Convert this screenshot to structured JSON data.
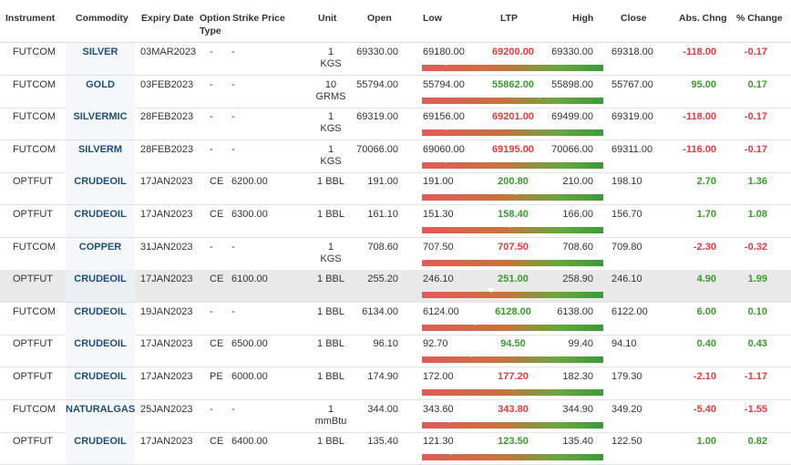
{
  "headers": {
    "instrument": "Instrument",
    "commodity": "Commodity",
    "expiry": "Expiry Date",
    "option_type_1": "Option",
    "option_type_2": "Type",
    "strike": "Strike Price",
    "unit": "Unit",
    "open": "Open",
    "low": "Low",
    "ltp": "LTP",
    "high": "High",
    "close": "Close",
    "abs_chng": "Abs. Chng",
    "pct_change": "% Change"
  },
  "colors": {
    "positive": "#3a9a2e",
    "negative": "#e03b3b",
    "commodity": "#1f4e79",
    "highlight_row": "#e9e9e9"
  },
  "rows": [
    {
      "instrument": "FUTCOM",
      "commodity": "SILVER",
      "expiry": "03MAR2023",
      "option_type": "-",
      "strike": "-",
      "unit1": "1",
      "unit2": "KGS",
      "open": "69330.00",
      "low": "69180.00",
      "ltp": "69200.00",
      "high": "69330.00",
      "close": "69318.00",
      "abs_chng": "-118.00",
      "pct_change": "-0.17",
      "dir": "neg",
      "ltp_frac": 0.13
    },
    {
      "instrument": "FUTCOM",
      "commodity": "GOLD",
      "expiry": "03FEB2023",
      "option_type": "-",
      "strike": "-",
      "unit1": "10",
      "unit2": "GRMS",
      "open": "55794.00",
      "low": "55794.00",
      "ltp": "55862.00",
      "high": "55898.00",
      "close": "55767.00",
      "abs_chng": "95.00",
      "pct_change": "0.17",
      "dir": "pos",
      "ltp_frac": 0.65
    },
    {
      "instrument": "FUTCOM",
      "commodity": "SILVERMIC",
      "expiry": "28FEB2023",
      "option_type": "-",
      "strike": "-",
      "unit1": "1",
      "unit2": "KGS",
      "open": "69319.00",
      "low": "69156.00",
      "ltp": "69201.00",
      "high": "69499.00",
      "close": "69319.00",
      "abs_chng": "-118.00",
      "pct_change": "-0.17",
      "dir": "neg",
      "ltp_frac": 0.13
    },
    {
      "instrument": "FUTCOM",
      "commodity": "SILVERM",
      "expiry": "28FEB2023",
      "option_type": "-",
      "strike": "-",
      "unit1": "1",
      "unit2": "KGS",
      "open": "70066.00",
      "low": "69060.00",
      "ltp": "69195.00",
      "high": "70066.00",
      "close": "69311.00",
      "abs_chng": "-116.00",
      "pct_change": "-0.17",
      "dir": "neg",
      "ltp_frac": 0.13
    },
    {
      "instrument": "OPTFUT",
      "commodity": "CRUDEOIL",
      "expiry": "17JAN2023",
      "option_type": "CE",
      "strike": "6200.00",
      "unit1": "1 BBL",
      "unit2": "",
      "open": "191.00",
      "low": "191.00",
      "ltp": "200.80",
      "high": "210.00",
      "close": "198.10",
      "abs_chng": "2.70",
      "pct_change": "1.36",
      "dir": "pos",
      "ltp_frac": 0.52
    },
    {
      "instrument": "OPTFUT",
      "commodity": "CRUDEOIL",
      "expiry": "17JAN2023",
      "option_type": "CE",
      "strike": "6300.00",
      "unit1": "1 BBL",
      "unit2": "",
      "open": "161.10",
      "low": "151.30",
      "ltp": "158.40",
      "high": "166.00",
      "close": "156.70",
      "abs_chng": "1.70",
      "pct_change": "1.08",
      "dir": "pos",
      "ltp_frac": 0.48
    },
    {
      "instrument": "FUTCOM",
      "commodity": "COPPER",
      "expiry": "31JAN2023",
      "option_type": "-",
      "strike": "-",
      "unit1": "1",
      "unit2": "KGS",
      "open": "708.60",
      "low": "707.50",
      "ltp": "707.50",
      "high": "708.60",
      "close": "709.80",
      "abs_chng": "-2.30",
      "pct_change": "-0.32",
      "dir": "neg",
      "ltp_frac": 0.01
    },
    {
      "instrument": "OPTFUT",
      "commodity": "CRUDEOIL",
      "expiry": "17JAN2023",
      "option_type": "CE",
      "strike": "6100.00",
      "unit1": "1 BBL",
      "unit2": "",
      "open": "255.20",
      "low": "246.10",
      "ltp": "251.00",
      "high": "258.90",
      "close": "246.10",
      "abs_chng": "4.90",
      "pct_change": "1.99",
      "dir": "pos",
      "ltp_frac": 0.38,
      "highlight": true
    },
    {
      "instrument": "FUTCOM",
      "commodity": "CRUDEOIL",
      "expiry": "19JAN2023",
      "option_type": "-",
      "strike": "-",
      "unit1": "1 BBL",
      "unit2": "",
      "open": "6134.00",
      "low": "6124.00",
      "ltp": "6128.00",
      "high": "6138.00",
      "close": "6122.00",
      "abs_chng": "6.00",
      "pct_change": "0.10",
      "dir": "pos",
      "ltp_frac": 0.29
    },
    {
      "instrument": "OPTFUT",
      "commodity": "CRUDEOIL",
      "expiry": "17JAN2023",
      "option_type": "CE",
      "strike": "6500.00",
      "unit1": "1 BBL",
      "unit2": "",
      "open": "96.10",
      "low": "92.70",
      "ltp": "94.50",
      "high": "99.40",
      "close": "94.10",
      "abs_chng": "0.40",
      "pct_change": "0.43",
      "dir": "pos",
      "ltp_frac": 0.27
    },
    {
      "instrument": "OPTFUT",
      "commodity": "CRUDEOIL",
      "expiry": "17JAN2023",
      "option_type": "PE",
      "strike": "6000.00",
      "unit1": "1 BBL",
      "unit2": "",
      "open": "174.90",
      "low": "172.00",
      "ltp": "177.20",
      "high": "182.30",
      "close": "179.30",
      "abs_chng": "-2.10",
      "pct_change": "-1.17",
      "dir": "neg",
      "ltp_frac": 0.5
    },
    {
      "instrument": "FUTCOM",
      "commodity": "NATURALGAS",
      "expiry": "25JAN2023",
      "option_type": "-",
      "strike": "-",
      "unit1": "1",
      "unit2": "mmBtu",
      "open": "344.00",
      "low": "343.60",
      "ltp": "343.80",
      "high": "344.90",
      "close": "349.20",
      "abs_chng": "-5.40",
      "pct_change": "-1.55",
      "dir": "neg",
      "ltp_frac": 0.15
    },
    {
      "instrument": "OPTFUT",
      "commodity": "CRUDEOIL",
      "expiry": "17JAN2023",
      "option_type": "CE",
      "strike": "6400.00",
      "unit1": "1 BBL",
      "unit2": "",
      "open": "135.40",
      "low": "121.30",
      "ltp": "123.50",
      "high": "135.40",
      "close": "122.50",
      "abs_chng": "1.00",
      "pct_change": "0.82",
      "dir": "pos",
      "ltp_frac": 0.16
    }
  ]
}
